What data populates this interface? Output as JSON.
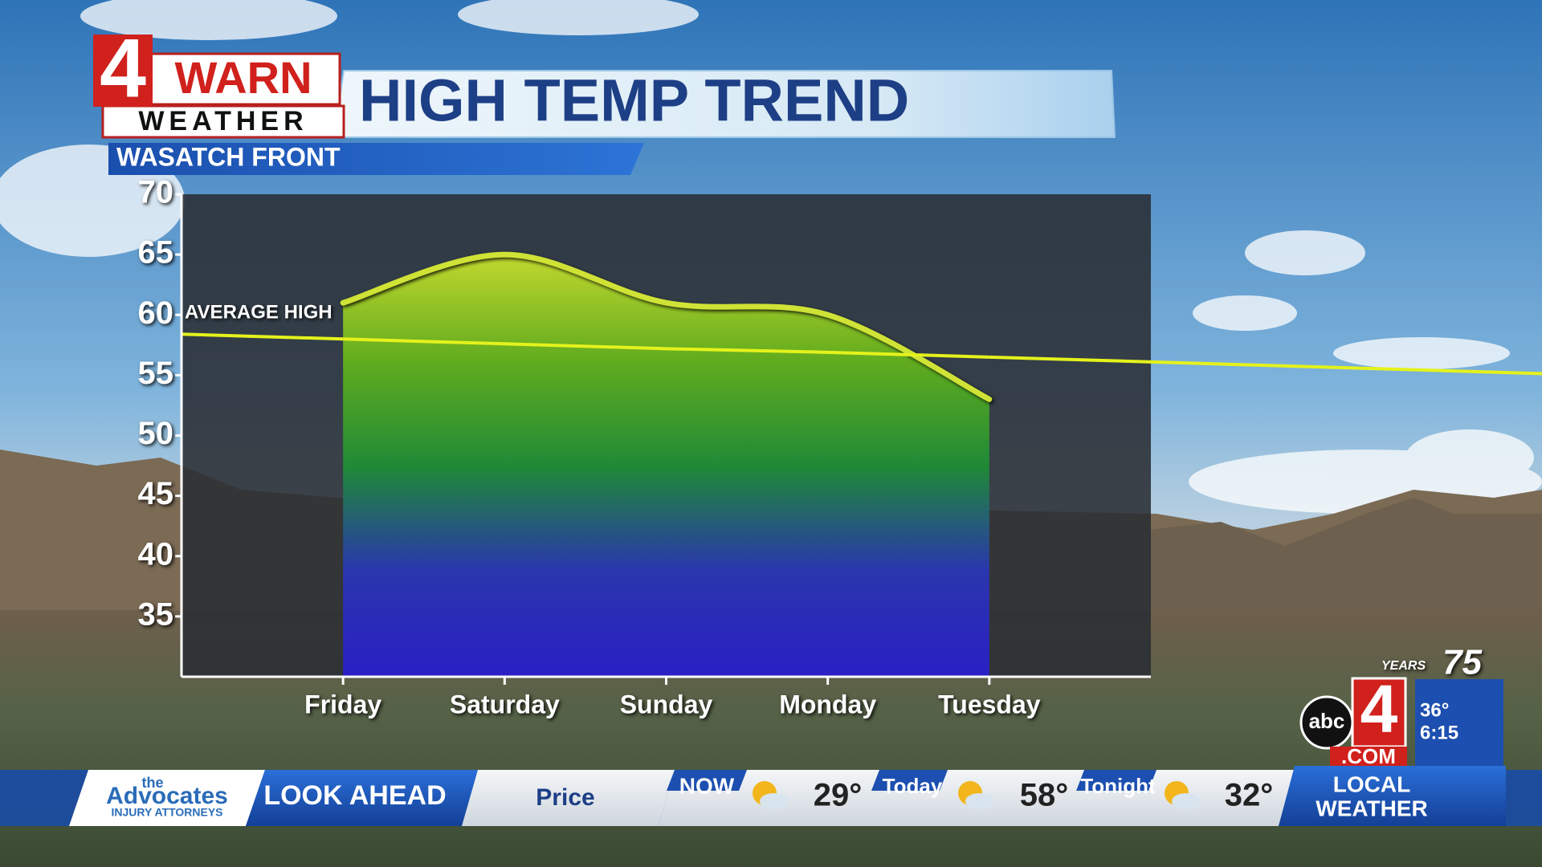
{
  "header": {
    "logo_number": "4",
    "logo_word": "WARN",
    "logo_sub": "WEATHER",
    "title": "HIGH TEMP TREND",
    "subtitle": "WASATCH FRONT"
  },
  "chart_data": {
    "type": "area",
    "categories": [
      "Friday",
      "Saturday",
      "Sunday",
      "Monday",
      "Tuesday"
    ],
    "series": [
      {
        "values": [
          61,
          65,
          61,
          60,
          53
        ],
        "color": "#cfe236",
        "fill_gradient": [
          "#c2d82e",
          "#62ac1e",
          "#1f8a36",
          "#2a36ae",
          "#2a1fc4"
        ]
      },
      {
        "name": "AVERAGE HIGH",
        "type": "line",
        "values": [
          58,
          57.6,
          57.2,
          56.9,
          56.5
        ],
        "color": "#e4f21c"
      }
    ],
    "ylim": [
      30,
      70
    ],
    "yticks": [
      35,
      40,
      45,
      50,
      55,
      60,
      65,
      70
    ],
    "plot_background": "#2a2e33"
  },
  "ticker": {
    "sponsor_small": "the",
    "sponsor": "Advocates",
    "sponsor_tag": "INJURY ATTORNEYS",
    "segment": "LOOK AHEAD",
    "location": "Price",
    "now_label": "NOW",
    "now_temp": "29°",
    "today_label": "Today",
    "today_temp": "58°",
    "tonight_label": "Tonight",
    "tonight_temp": "32°",
    "local": [
      "LOCAL",
      "WEATHER"
    ]
  },
  "station": {
    "anniversary": "75",
    "anniversary_word": "YEARS",
    "network": "abc",
    "channel": "4",
    "site": ".COM",
    "temperature": "36°",
    "time": "6:15"
  }
}
